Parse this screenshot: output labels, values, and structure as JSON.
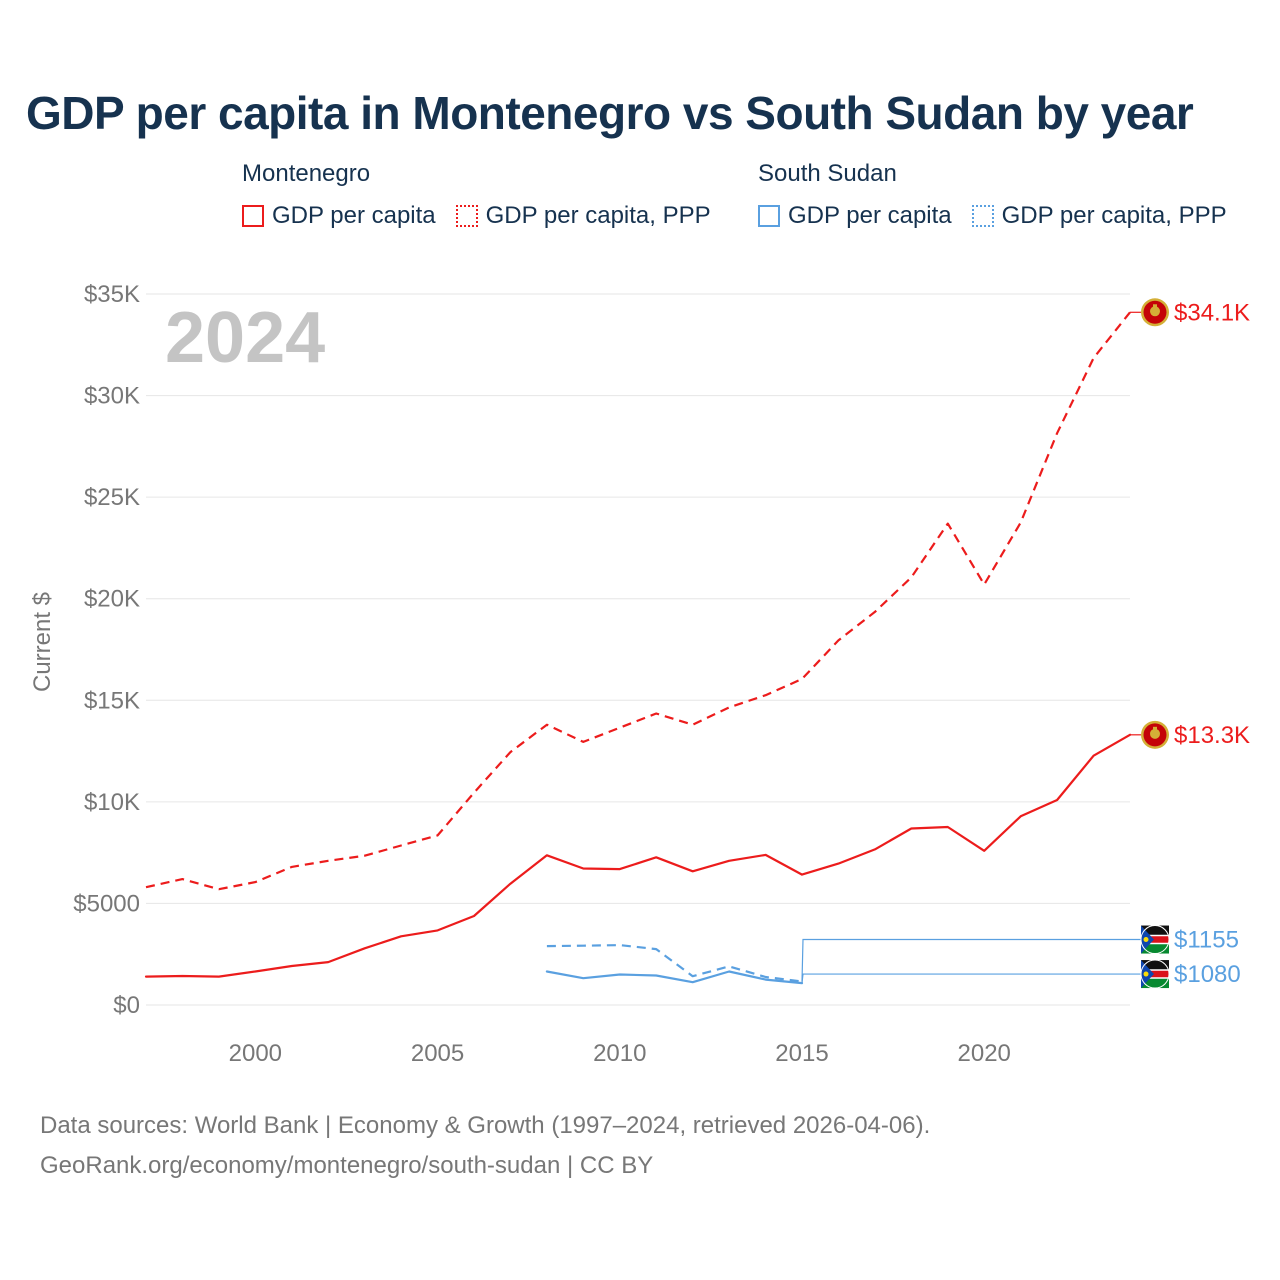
{
  "title": "GDP per capita in Montenegro vs South Sudan by year",
  "legend": {
    "groups": [
      {
        "name": "Montenegro",
        "items": [
          {
            "label": "GDP per capita"
          },
          {
            "label": "GDP per capita, PPP"
          }
        ]
      },
      {
        "name": "South Sudan",
        "items": [
          {
            "label": "GDP per capita"
          },
          {
            "label": "GDP per capita, PPP"
          }
        ]
      }
    ]
  },
  "footer": {
    "line1": "Data sources: World Bank | Economy & Growth (1997–2024, retrieved 2026-04-06).",
    "line2": "GeoRank.org/economy/montenegro/south-sudan | CC BY"
  },
  "colors": {
    "montenegro": "#ec1c1c",
    "south_sudan": "#5aa0e0",
    "title": "#16324f",
    "axis_text": "#777777",
    "watermark": "#c4c4c4",
    "grid": "#e6e6e6"
  },
  "chart_data": {
    "type": "line",
    "title": "GDP per capita in Montenegro vs South Sudan by year",
    "ylabel": "Current $",
    "xlabel": "",
    "xlim": [
      1997,
      2024
    ],
    "ylim": [
      0,
      35000
    ],
    "year_watermark": "2024",
    "x_ticks": [
      2000,
      2005,
      2010,
      2015,
      2020
    ],
    "x_tick_labels": [
      "2000",
      "2005",
      "2010",
      "2015",
      "2020"
    ],
    "y_ticks": [
      0,
      5000,
      10000,
      15000,
      20000,
      25000,
      30000,
      35000
    ],
    "y_tick_labels": [
      "$0",
      "$5000",
      "$10K",
      "$15K",
      "$20K",
      "$25K",
      "$30K",
      "$35K"
    ],
    "series": [
      {
        "name": "Montenegro GDP per capita",
        "country": "Montenegro",
        "style": "solid",
        "color": "#ec1c1c",
        "end_label": "$13.3K",
        "x": [
          1997,
          1998,
          1999,
          2000,
          2001,
          2002,
          2003,
          2004,
          2005,
          2006,
          2007,
          2008,
          2009,
          2010,
          2011,
          2012,
          2013,
          2014,
          2015,
          2016,
          2017,
          2018,
          2019,
          2020,
          2021,
          2022,
          2023,
          2024
        ],
        "values": [
          1400,
          1430,
          1400,
          1650,
          1920,
          2110,
          2790,
          3380,
          3670,
          4380,
          5970,
          7370,
          6720,
          6690,
          7270,
          6580,
          7100,
          7390,
          6420,
          6960,
          7660,
          8690,
          8760,
          7590,
          9290,
          10090,
          12270,
          13300
        ]
      },
      {
        "name": "Montenegro GDP per capita, PPP",
        "country": "Montenegro",
        "style": "dashed",
        "color": "#ec1c1c",
        "end_label": "$34.1K",
        "x": [
          1997,
          1998,
          1999,
          2000,
          2001,
          2002,
          2003,
          2004,
          2005,
          2006,
          2007,
          2008,
          2009,
          2010,
          2011,
          2012,
          2013,
          2014,
          2015,
          2016,
          2017,
          2018,
          2019,
          2020,
          2021,
          2022,
          2023,
          2024
        ],
        "values": [
          5800,
          6200,
          5700,
          6050,
          6800,
          7100,
          7350,
          7850,
          8350,
          10450,
          12450,
          13800,
          12950,
          13650,
          14350,
          13800,
          14650,
          15250,
          16050,
          17950,
          19350,
          21050,
          23700,
          20700,
          23750,
          28150,
          31850,
          34100
        ]
      },
      {
        "name": "South Sudan GDP per capita",
        "country": "South Sudan",
        "style": "solid",
        "color": "#5aa0e0",
        "end_label": "$1080",
        "x": [
          2008,
          2009,
          2010,
          2011,
          2012,
          2013,
          2014,
          2015
        ],
        "values": [
          1650,
          1320,
          1500,
          1450,
          1120,
          1650,
          1250,
          1080
        ]
      },
      {
        "name": "South Sudan GDP per capita, PPP",
        "country": "South Sudan",
        "style": "dashed",
        "color": "#5aa0e0",
        "end_label": "$1155",
        "x": [
          2008,
          2009,
          2010,
          2011,
          2012,
          2013,
          2014,
          2015
        ],
        "values": [
          2900,
          2920,
          2950,
          2750,
          1420,
          1900,
          1380,
          1155
        ]
      }
    ]
  }
}
